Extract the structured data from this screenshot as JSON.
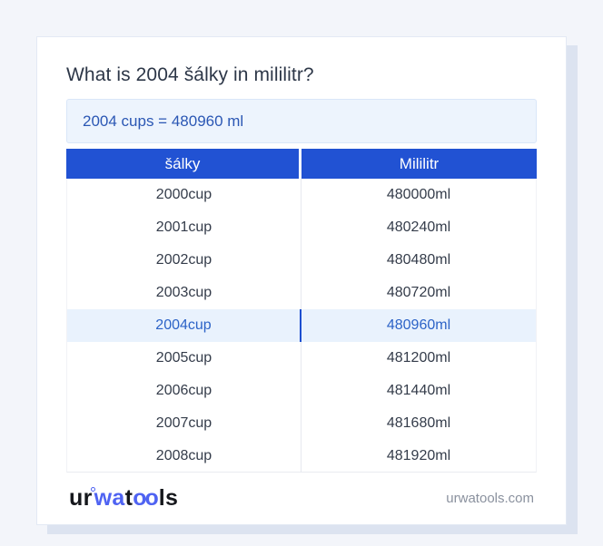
{
  "page": {
    "title": "What is 2004 šálky in mililitr?",
    "answer": "2004 cups = 480960 ml"
  },
  "table": {
    "headers": {
      "cups": "šálky",
      "ml": "Mililitr"
    },
    "rows": [
      {
        "cups": "2000cup",
        "ml": "480000ml",
        "highlight": false
      },
      {
        "cups": "2001cup",
        "ml": "480240ml",
        "highlight": false
      },
      {
        "cups": "2002cup",
        "ml": "480480ml",
        "highlight": false
      },
      {
        "cups": "2003cup",
        "ml": "480720ml",
        "highlight": false
      },
      {
        "cups": "2004cup",
        "ml": "480960ml",
        "highlight": true
      },
      {
        "cups": "2005cup",
        "ml": "481200ml",
        "highlight": false
      },
      {
        "cups": "2006cup",
        "ml": "481440ml",
        "highlight": false
      },
      {
        "cups": "2007cup",
        "ml": "481680ml",
        "highlight": false
      },
      {
        "cups": "2008cup",
        "ml": "481920ml",
        "highlight": false
      }
    ]
  },
  "footer": {
    "logo": {
      "seg1": "ur",
      "seg2": "wa",
      "seg3": "t",
      "seg4": "oo",
      "seg5": "ls"
    },
    "site": "urwatools.com"
  },
  "colors": {
    "page_bg": "#f3f5fa",
    "card_shadow": "#dce3f0",
    "header_blue": "#2152d3",
    "answer_bg": "#edf4fd",
    "answer_text": "#2b57b4",
    "row_text": "#343c4a",
    "highlight_bg": "#e9f2fd",
    "highlight_text": "#2c63c7",
    "highlight_divider": "#1d4fd0",
    "logo_blue": "#4f63f2",
    "muted_text": "#8a919e"
  }
}
